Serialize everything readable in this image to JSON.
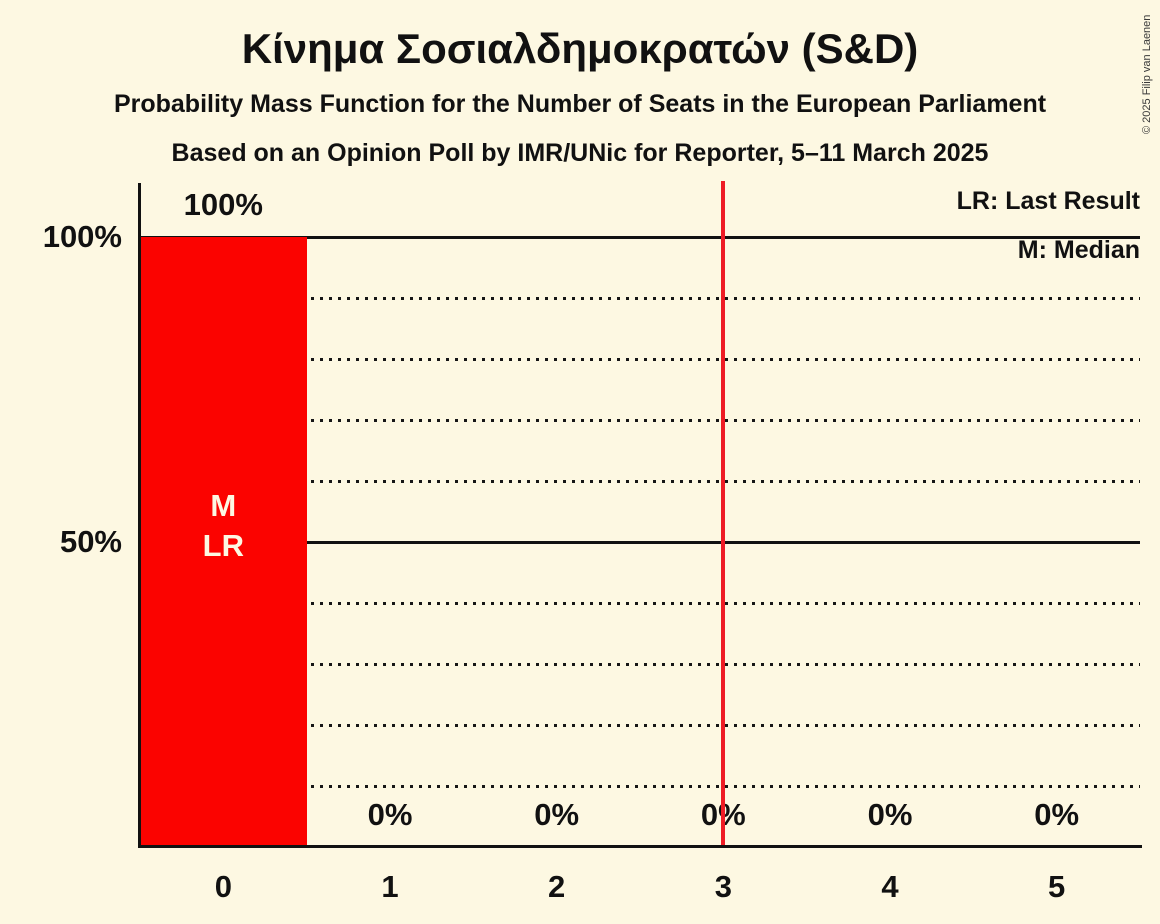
{
  "header": {
    "title": "Κίνημα Σοσιαλδημοκρατών (S&D)",
    "subtitle": "Probability Mass Function for the Number of Seats in the European Parliament",
    "poll_line": "Based on an Opinion Poll by IMR/UNic for Reporter, 5–11 March 2025"
  },
  "copyright": "© 2025 Filip van Laenen",
  "legend": {
    "last_result": "LR: Last Result",
    "median": "M: Median"
  },
  "chart_data": {
    "type": "bar",
    "title": "Κίνημα Σοσιαλδημοκρατών (S&D)",
    "categories": [
      "0",
      "1",
      "2",
      "3",
      "4",
      "5"
    ],
    "values": [
      100,
      0,
      0,
      0,
      0,
      0
    ],
    "bar_labels": [
      "100%",
      "0%",
      "0%",
      "0%",
      "0%",
      "0%"
    ],
    "ylim": [
      0,
      100
    ],
    "yticks": [
      {
        "value": 100,
        "label": "100%"
      },
      {
        "value": 50,
        "label": "50%"
      }
    ],
    "gridlines": [
      {
        "value": 100,
        "style": "solid"
      },
      {
        "value": 90,
        "style": "dotted"
      },
      {
        "value": 80,
        "style": "dotted"
      },
      {
        "value": 70,
        "style": "dotted"
      },
      {
        "value": 60,
        "style": "dotted"
      },
      {
        "value": 50,
        "style": "solid"
      },
      {
        "value": 40,
        "style": "dotted"
      },
      {
        "value": 30,
        "style": "dotted"
      },
      {
        "value": 20,
        "style": "dotted"
      },
      {
        "value": 10,
        "style": "dotted"
      }
    ],
    "vline_x": 3.5,
    "bar_annotations": [
      {
        "category": "0",
        "lines": [
          "M",
          "LR"
        ]
      }
    ],
    "legend_position": "top-right",
    "colors": {
      "background": "#fdf8e2",
      "bar": "#fb0300",
      "bar_text": "#fdf8e2",
      "vline": "#ee1c25",
      "text": "#111111"
    }
  }
}
